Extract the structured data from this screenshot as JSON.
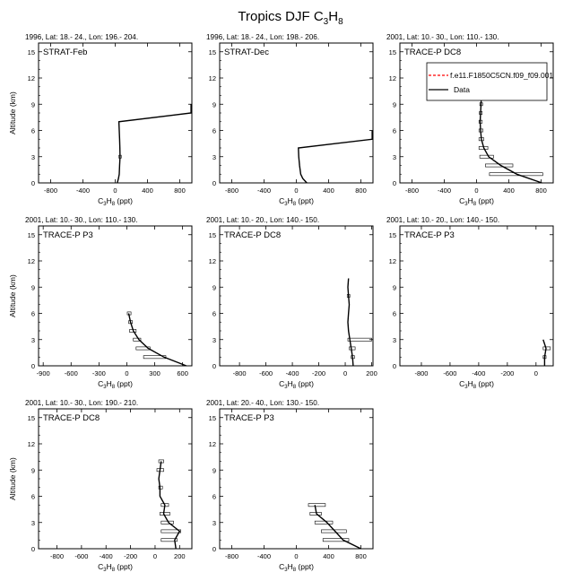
{
  "figure": {
    "title_text": "Tropics DJF C",
    "title_sub1": "3",
    "title_mid": "H",
    "title_sub2": "8"
  },
  "legend": {
    "model_label": "f.e11.F1850C5CN.f09_f09.001",
    "data_label": "Data",
    "model_color": "#ff0000",
    "data_color": "#000000"
  },
  "axis_text": {
    "ylabel": "Altitude (km)",
    "xlabel_pre": "C",
    "xlabel_sub1": "3",
    "xlabel_mid": "H",
    "xlabel_sub2": "8",
    "xlabel_post": " (ppt)"
  },
  "chart_data": [
    {
      "type": "line",
      "subtitle": "1996, Lat: 18.- 24., Lon: 196.- 204.",
      "label": "STRAT-Feb",
      "xlim": [
        -950,
        950
      ],
      "xticks": [
        -800,
        -400,
        0,
        400,
        800
      ],
      "ylim": [
        0,
        16
      ],
      "yticks": [
        0,
        3,
        6,
        9,
        12,
        15
      ],
      "series": [
        {
          "points": [
            [
              25,
              0
            ],
            [
              40,
              0.5
            ],
            [
              50,
              1
            ],
            [
              55,
              2
            ],
            [
              60,
              3
            ],
            [
              58,
              4
            ],
            [
              55,
              5
            ],
            [
              50,
              6
            ],
            [
              45,
              7
            ],
            [
              940,
              8
            ],
            [
              940,
              9
            ]
          ]
        }
      ],
      "errorbars": [
        {
          "y": 3,
          "lo": 45,
          "hi": 75
        }
      ]
    },
    {
      "type": "line",
      "subtitle": "1996, Lat: 18.- 24., Lon: 198.- 206.",
      "label": "STRAT-Dec",
      "xlim": [
        -950,
        950
      ],
      "xticks": [
        -800,
        -400,
        0,
        400,
        800
      ],
      "ylim": [
        0,
        16
      ],
      "yticks": [
        0,
        3,
        6,
        9,
        12,
        15
      ],
      "series": [
        {
          "points": [
            [
              130,
              0
            ],
            [
              80,
              0.5
            ],
            [
              55,
              1
            ],
            [
              40,
              2
            ],
            [
              30,
              3
            ],
            [
              25,
              4
            ],
            [
              940,
              5
            ],
            [
              940,
              6
            ]
          ]
        }
      ],
      "errorbars": []
    },
    {
      "type": "line",
      "subtitle": "2001, Lat: 10.- 30., Lon: 110.- 130.",
      "label": "TRACE-P DC8",
      "xlim": [
        -950,
        950
      ],
      "xticks": [
        -800,
        -400,
        0,
        400,
        800
      ],
      "ylim": [
        0,
        16
      ],
      "yticks": [
        0,
        3,
        6,
        9,
        12,
        15
      ],
      "series": [
        {
          "points": [
            [
              810,
              0
            ],
            [
              500,
              1
            ],
            [
              300,
              2
            ],
            [
              150,
              3
            ],
            [
              90,
              4
            ],
            [
              60,
              5
            ],
            [
              50,
              6
            ],
            [
              45,
              7
            ],
            [
              50,
              8
            ],
            [
              55,
              9
            ],
            [
              60,
              10
            ]
          ]
        }
      ],
      "errorbars": [
        {
          "y": 1,
          "lo": 160,
          "hi": 820
        },
        {
          "y": 2,
          "lo": 110,
          "hi": 450
        },
        {
          "y": 3,
          "lo": 40,
          "hi": 210
        },
        {
          "y": 4,
          "lo": 30,
          "hi": 140
        },
        {
          "y": 5,
          "lo": 30,
          "hi": 90
        },
        {
          "y": 6,
          "lo": 30,
          "hi": 80
        },
        {
          "y": 7,
          "lo": 30,
          "hi": 70
        },
        {
          "y": 8,
          "lo": 35,
          "hi": 70
        },
        {
          "y": 9,
          "lo": 40,
          "hi": 75
        },
        {
          "y": 10,
          "lo": 30,
          "hi": 90
        }
      ]
    },
    {
      "type": "line",
      "subtitle": "2001, Lat: 10.- 30., Lon: 110.- 130.",
      "label": "TRACE-P P3",
      "xlim": [
        -950,
        700
      ],
      "xticks": [
        -900,
        -600,
        -300,
        0,
        300,
        600
      ],
      "ylim": [
        0,
        16
      ],
      "yticks": [
        0,
        3,
        6,
        9,
        12,
        15
      ],
      "series": [
        {
          "points": [
            [
              640,
              0
            ],
            [
              400,
              1
            ],
            [
              230,
              2
            ],
            [
              130,
              3
            ],
            [
              70,
              4
            ],
            [
              40,
              5
            ],
            [
              20,
              6
            ]
          ]
        }
      ],
      "errorbars": [
        {
          "y": 1,
          "lo": 180,
          "hi": 420
        },
        {
          "y": 2,
          "lo": 100,
          "hi": 250
        },
        {
          "y": 3,
          "lo": 70,
          "hi": 150
        },
        {
          "y": 4,
          "lo": 30,
          "hi": 100
        },
        {
          "y": 5,
          "lo": 20,
          "hi": 60
        },
        {
          "y": 6,
          "lo": 5,
          "hi": 45
        }
      ]
    },
    {
      "type": "line",
      "subtitle": "2001, Lat: 10.- 20., Lon: 140.- 150.",
      "label": "TRACE-P DC8",
      "xlim": [
        -950,
        210
      ],
      "xticks": [
        -800,
        -600,
        -400,
        -200,
        0,
        200
      ],
      "ylim": [
        0,
        16
      ],
      "yticks": [
        0,
        3,
        6,
        9,
        12,
        15
      ],
      "series": [
        {
          "points": [
            [
              60,
              0
            ],
            [
              55,
              1
            ],
            [
              45,
              2
            ],
            [
              35,
              3
            ],
            [
              25,
              4
            ],
            [
              20,
              5
            ],
            [
              25,
              6
            ],
            [
              30,
              7
            ],
            [
              25,
              8
            ],
            [
              20,
              9
            ],
            [
              25,
              10
            ]
          ]
        }
      ],
      "errorbars": [
        {
          "y": 1,
          "lo": 45,
          "hi": 70
        },
        {
          "y": 2,
          "lo": 30,
          "hi": 75
        },
        {
          "y": 3,
          "lo": 20,
          "hi": 200
        },
        {
          "y": 8,
          "lo": 15,
          "hi": 35
        }
      ]
    },
    {
      "type": "line",
      "subtitle": "2001, Lat: 10.- 20., Lon: 140.- 150.",
      "label": "TRACE-P P3",
      "xlim": [
        -950,
        120
      ],
      "xticks": [
        -800,
        -600,
        -400,
        -200,
        0
      ],
      "ylim": [
        0,
        16
      ],
      "yticks": [
        0,
        3,
        6,
        9,
        12,
        15
      ],
      "series": [
        {
          "points": [
            [
              60,
              0
            ],
            [
              60,
              1
            ],
            [
              70,
              2
            ],
            [
              50,
              3
            ]
          ]
        }
      ],
      "errorbars": [
        {
          "y": 1,
          "lo": 50,
          "hi": 70
        },
        {
          "y": 2,
          "lo": 50,
          "hi": 100
        }
      ]
    },
    {
      "type": "line",
      "subtitle": "2001, Lat: 10.- 30., Lon: 190.- 210.",
      "label": "TRACE-P DC8",
      "xlim": [
        -950,
        300
      ],
      "xticks": [
        -800,
        -600,
        -400,
        -200,
        0,
        200
      ],
      "ylim": [
        0,
        16
      ],
      "yticks": [
        0,
        3,
        6,
        9,
        12,
        15
      ],
      "series": [
        {
          "points": [
            [
              170,
              0
            ],
            [
              160,
              1
            ],
            [
              200,
              2
            ],
            [
              110,
              3
            ],
            [
              70,
              4
            ],
            [
              80,
              5
            ],
            [
              40,
              6
            ],
            [
              40,
              7
            ],
            [
              30,
              8
            ],
            [
              40,
              9
            ],
            [
              50,
              10
            ]
          ]
        }
      ],
      "errorbars": [
        {
          "y": 1,
          "lo": 50,
          "hi": 180
        },
        {
          "y": 2,
          "lo": 50,
          "hi": 210
        },
        {
          "y": 3,
          "lo": 50,
          "hi": 150
        },
        {
          "y": 4,
          "lo": 40,
          "hi": 120
        },
        {
          "y": 5,
          "lo": 50,
          "hi": 110
        },
        {
          "y": 7,
          "lo": 30,
          "hi": 60
        },
        {
          "y": 9,
          "lo": 15,
          "hi": 70
        },
        {
          "y": 10,
          "lo": 30,
          "hi": 70
        }
      ]
    },
    {
      "type": "line",
      "subtitle": "2001, Lat: 20.- 40., Lon: 130.- 150.",
      "label": "TRACE-P P3",
      "xlim": [
        -950,
        950
      ],
      "xticks": [
        -800,
        -400,
        0,
        400,
        800
      ],
      "ylim": [
        0,
        16
      ],
      "yticks": [
        0,
        3,
        6,
        9,
        12,
        15
      ],
      "series": [
        {
          "points": [
            [
              800,
              0
            ],
            [
              580,
              1
            ],
            [
              480,
              2
            ],
            [
              380,
              3
            ],
            [
              250,
              4
            ],
            [
              230,
              5
            ]
          ]
        }
      ],
      "errorbars": [
        {
          "y": 1,
          "lo": 330,
          "hi": 650
        },
        {
          "y": 2,
          "lo": 310,
          "hi": 620
        },
        {
          "y": 3,
          "lo": 230,
          "hi": 450
        },
        {
          "y": 4,
          "lo": 170,
          "hi": 310
        },
        {
          "y": 5,
          "lo": 150,
          "hi": 360
        }
      ]
    }
  ]
}
